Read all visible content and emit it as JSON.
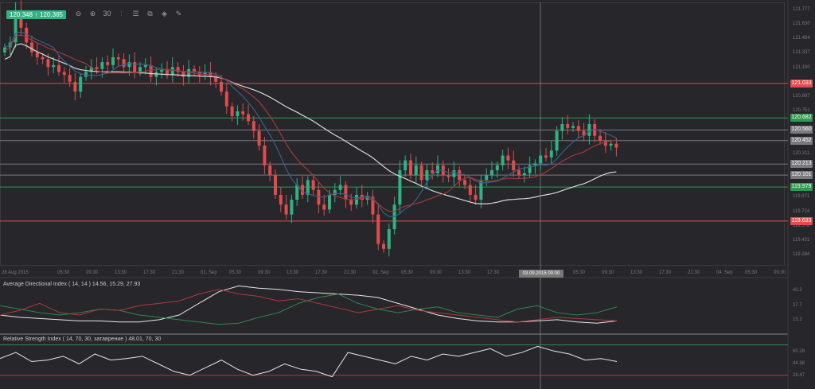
{
  "toolbar": {
    "bid": "120.348",
    "ask": "120.365",
    "arrow": "↑",
    "tools": [
      {
        "name": "zoom-out-icon",
        "glyph": "⊖"
      },
      {
        "name": "zoom-in-icon",
        "glyph": "⊕"
      },
      {
        "name": "timeframe-icon",
        "glyph": "30"
      },
      {
        "name": "chart-type-icon",
        "glyph": "⫶"
      },
      {
        "name": "indicators-icon",
        "glyph": "☰"
      },
      {
        "name": "snapshot-icon",
        "glyph": "⧉"
      },
      {
        "name": "objects-icon",
        "glyph": "◈"
      },
      {
        "name": "draw-icon",
        "glyph": "✎"
      }
    ]
  },
  "colors": {
    "bull": "#2fb383",
    "bear": "#e24c4c",
    "bg": "#26262b",
    "ma_white": "#d8d8d8",
    "ma_blue": "#3a5f8a",
    "ma_red": "#a03a3a"
  },
  "price_axis": [
    "121.777",
    "121.630",
    "121.484",
    "121.337",
    "121.190",
    "120.897",
    "120.751",
    "120.311",
    "119.871",
    "119.724",
    "119.578",
    "119.431",
    "119.284"
  ],
  "levels": [
    {
      "price": 121.033,
      "label": "121.033",
      "color": "#e24c4c"
    },
    {
      "price": 120.682,
      "label": "120.682",
      "color": "#2f9a4f"
    },
    {
      "price": 120.56,
      "label": "120.560",
      "color": "#7a7a7e"
    },
    {
      "price": 120.452,
      "label": "120.452",
      "color": "#7a7a7e"
    },
    {
      "price": 120.213,
      "label": "120.213",
      "color": "#7a7a7e"
    },
    {
      "price": 120.101,
      "label": "120.101",
      "color": "#7a7a7e"
    },
    {
      "price": 119.979,
      "label": "119.979",
      "color": "#2f9a4f"
    },
    {
      "price": 119.633,
      "label": "119.633",
      "color": "#e24c4c"
    }
  ],
  "time_axis": [
    "28 Aug 2015",
    "05:30",
    "09:30",
    "13:30",
    "17:30",
    "21:30",
    "01. Sep",
    "05:30",
    "09:30",
    "13:30",
    "17:30",
    "21:30",
    "02. Sep",
    "05:30",
    "09:30",
    "13:30",
    "17:30",
    "",
    "",
    "05:30",
    "09:30",
    "13:30",
    "17:30",
    "21:30",
    "04. Sep",
    "05:30",
    "09:30"
  ],
  "crosshair_label": "03.09.2015 00:00",
  "adx": {
    "title": "Average Directional Index ( 14, 14 ) 14.56, 15.29, 27.93",
    "axis": [
      "40.2",
      "27.7",
      "15.2"
    ],
    "adx": [
      20,
      18,
      17,
      16,
      15,
      15,
      14,
      14,
      16,
      20,
      30,
      40,
      45,
      43,
      42,
      40,
      39,
      38,
      37,
      35,
      30,
      25,
      20,
      17,
      15,
      14,
      14,
      15,
      16,
      14,
      13,
      15
    ],
    "plus_di": [
      28,
      25,
      22,
      20,
      22,
      25,
      24,
      20,
      18,
      16,
      14,
      12,
      13,
      18,
      22,
      30,
      35,
      38,
      30,
      25,
      22,
      25,
      27,
      22,
      20,
      18,
      25,
      28,
      22,
      20,
      22,
      27
    ],
    "minus_di": [
      20,
      24,
      30,
      22,
      20,
      25,
      24,
      28,
      30,
      32,
      38,
      42,
      38,
      36,
      32,
      34,
      30,
      26,
      22,
      25,
      28,
      24,
      22,
      20,
      18,
      16,
      14,
      16,
      18,
      17,
      16,
      15
    ]
  },
  "rsi": {
    "title": "Relative Strength Index ( 14, 70, 30, затаврение ) 48.01, 70, 30",
    "axis": [
      "60.28",
      "44.38",
      "28.47"
    ],
    "values": [
      52,
      60,
      48,
      50,
      55,
      45,
      58,
      50,
      52,
      55,
      45,
      35,
      30,
      40,
      50,
      38,
      30,
      35,
      45,
      38,
      35,
      28,
      60,
      55,
      50,
      45,
      55,
      50,
      58,
      55,
      60,
      65,
      55,
      60,
      68,
      62,
      58,
      50,
      52,
      48
    ]
  },
  "chart_data": {
    "type": "candlestick",
    "ylim": [
      119.284,
      121.777
    ],
    "closes": [
      121.4,
      121.45,
      121.78,
      121.6,
      121.45,
      121.35,
      121.3,
      121.28,
      121.2,
      121.22,
      121.15,
      121.12,
      121.05,
      120.95,
      121.1,
      121.15,
      121.2,
      121.18,
      121.25,
      121.22,
      121.3,
      121.28,
      121.2,
      121.25,
      121.15,
      121.2,
      121.22,
      121.1,
      121.15,
      121.18,
      121.12,
      121.2,
      121.15,
      121.1,
      121.18,
      121.15,
      121.12,
      121.15,
      121.1,
      121.05,
      120.95,
      120.8,
      120.7,
      120.75,
      120.72,
      120.65,
      120.55,
      120.4,
      120.2,
      120.1,
      119.9,
      119.8,
      119.7,
      119.85,
      120.0,
      119.9,
      120.05,
      119.95,
      119.8,
      119.75,
      119.9,
      119.95,
      120.0,
      119.85,
      119.8,
      119.9,
      119.85,
      119.88,
      119.7,
      119.4,
      119.35,
      119.55,
      119.8,
      120.15,
      120.25,
      120.1,
      120.2,
      120.05,
      120.15,
      120.12,
      120.2,
      120.1,
      120.08,
      120.15,
      120.05,
      120.0,
      119.9,
      119.85,
      120.05,
      120.1,
      120.15,
      120.2,
      120.3,
      120.25,
      120.15,
      120.1,
      120.12,
      120.2,
      120.22,
      120.3,
      120.28,
      120.35,
      120.55,
      120.62,
      120.58,
      120.6,
      120.55,
      120.5,
      120.62,
      120.5,
      120.45,
      120.4,
      120.42,
      120.38
    ]
  }
}
